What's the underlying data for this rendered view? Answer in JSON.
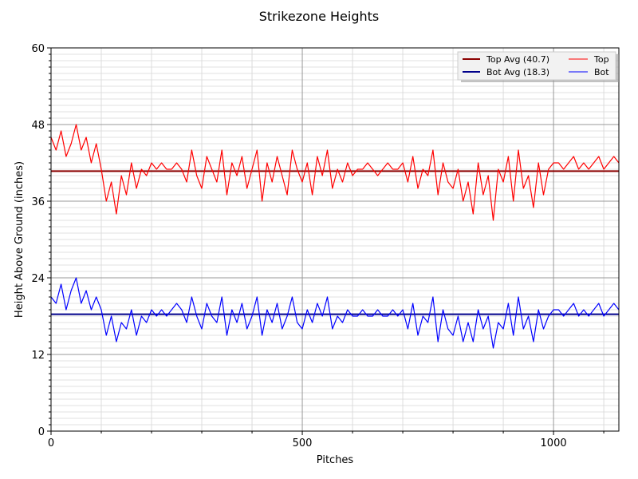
{
  "chart_data": {
    "type": "line",
    "title": "Strikezone Heights",
    "xlabel": "Pitches",
    "ylabel": "Height Above Ground (inches)",
    "xlim": [
      0,
      1130
    ],
    "ylim": [
      0,
      60
    ],
    "xticks": [
      0,
      500,
      1000
    ],
    "xtick_labels": [
      "0",
      "500",
      "1000"
    ],
    "yticks": [
      0,
      12,
      24,
      36,
      48,
      60
    ],
    "ytick_labels": [
      "0",
      "12",
      "24",
      "36",
      "48",
      "60"
    ],
    "grid": true,
    "legend_placement": "top-right",
    "x_start": 0,
    "x_step": 10,
    "series": [
      {
        "name": "Top",
        "label": "Top",
        "color": "#ff0000",
        "values": [
          46,
          44,
          47,
          43,
          45,
          48,
          44,
          46,
          42,
          45,
          41,
          36,
          39,
          34,
          40,
          37,
          42,
          38,
          41,
          40,
          42,
          41,
          42,
          41,
          41,
          42,
          41,
          39,
          44,
          40,
          38,
          43,
          41,
          39,
          44,
          37,
          42,
          40,
          43,
          38,
          41,
          44,
          36,
          42,
          39,
          43,
          40,
          37,
          44,
          41,
          39,
          42,
          37,
          43,
          40,
          44,
          38,
          41,
          39,
          42,
          40,
          41,
          41,
          42,
          41,
          40,
          41,
          42,
          41,
          41,
          42,
          39,
          43,
          38,
          41,
          40,
          44,
          37,
          42,
          39,
          38,
          41,
          36,
          39,
          34,
          42,
          37,
          40,
          33,
          41,
          39,
          43,
          36,
          44,
          38,
          40,
          35,
          42,
          37,
          41,
          42,
          42,
          41,
          42,
          43,
          41,
          42,
          41,
          42,
          43,
          41,
          42,
          43,
          42
        ]
      },
      {
        "name": "Bot",
        "label": "Bot",
        "color": "#0000ff",
        "values": [
          21,
          20,
          23,
          19,
          22,
          24,
          20,
          22,
          19,
          21,
          19,
          15,
          18,
          14,
          17,
          16,
          19,
          15,
          18,
          17,
          19,
          18,
          19,
          18,
          19,
          20,
          19,
          17,
          21,
          18,
          16,
          20,
          18,
          17,
          21,
          15,
          19,
          17,
          20,
          16,
          18,
          21,
          15,
          19,
          17,
          20,
          16,
          18,
          21,
          17,
          16,
          19,
          17,
          20,
          18,
          21,
          16,
          18,
          17,
          19,
          18,
          18,
          19,
          18,
          18,
          19,
          18,
          18,
          19,
          18,
          19,
          16,
          20,
          15,
          18,
          17,
          21,
          14,
          19,
          16,
          15,
          18,
          14,
          17,
          14,
          19,
          16,
          18,
          13,
          17,
          16,
          20,
          15,
          21,
          16,
          18,
          14,
          19,
          16,
          18,
          19,
          19,
          18,
          19,
          20,
          18,
          19,
          18,
          19,
          20,
          18,
          19,
          20,
          19
        ]
      }
    ],
    "averages": [
      {
        "name": "Top Avg",
        "label": "Top Avg (40.7)",
        "value": 40.7,
        "color": "#8b0000"
      },
      {
        "name": "Bot Avg",
        "label": "Bot Avg (18.3)",
        "value": 18.3,
        "color": "#00008b"
      }
    ]
  }
}
